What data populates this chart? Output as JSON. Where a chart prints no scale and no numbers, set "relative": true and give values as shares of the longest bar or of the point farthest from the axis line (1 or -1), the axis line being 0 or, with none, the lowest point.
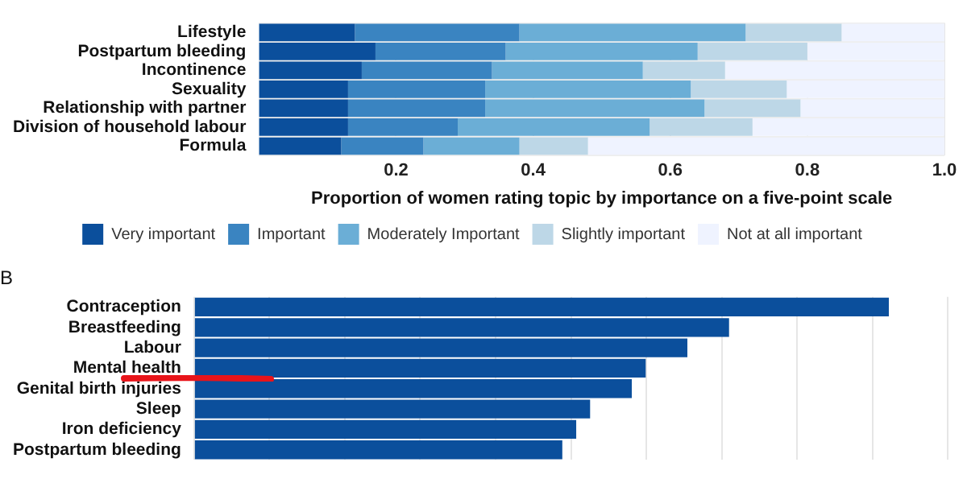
{
  "chart_data": [
    {
      "type": "bar",
      "orientation": "horizontal",
      "stacked": true,
      "xlabel": "Proportion of women rating topic by importance on a five-point scale",
      "categories": [
        "Lifestyle",
        "Postpartum bleeding",
        "Incontinence",
        "Sexuality",
        "Relationship with partner",
        "Division of household labour",
        "Formula"
      ],
      "xlim": [
        0,
        1
      ],
      "xticks": [
        {
          "value": 0.2,
          "label": "0.2"
        },
        {
          "value": 0.4,
          "label": "0.4"
        },
        {
          "value": 0.6,
          "label": "0.6"
        },
        {
          "value": 0.8,
          "label": "0.8"
        },
        {
          "value": 1,
          "label": "1.0"
        }
      ],
      "grid": true,
      "legend": "bottom",
      "series": [
        {
          "name": "Very important",
          "color": "#0b4f9c",
          "values": [
            0.14,
            0.17,
            0.15,
            0.13,
            0.13,
            0.13,
            0.12
          ]
        },
        {
          "name": "Important",
          "color": "#3a84c1",
          "values": [
            0.24,
            0.19,
            0.19,
            0.2,
            0.2,
            0.16,
            0.12
          ]
        },
        {
          "name": "Moderately Important",
          "color": "#6baed6",
          "values": [
            0.33,
            0.28,
            0.22,
            0.3,
            0.32,
            0.28,
            0.14
          ]
        },
        {
          "name": "Slightly important",
          "color": "#bdd7e7",
          "values": [
            0.14,
            0.16,
            0.12,
            0.14,
            0.14,
            0.15,
            0.1
          ]
        },
        {
          "name": "Not at all important",
          "color": "#eff3ff",
          "values": [
            0.15,
            0.2,
            0.32,
            0.23,
            0.21,
            0.28,
            0.52
          ]
        }
      ]
    },
    {
      "type": "bar",
      "orientation": "horizontal",
      "relative": true,
      "title": "B",
      "categories": [
        "Contraception",
        "Breastfeeding",
        "Labour",
        "Mental health",
        "Genital birth injuries",
        "Sleep",
        "Iron deficiency",
        "Postpartum bleeding"
      ],
      "grid": "x",
      "series": [
        {
          "color": "#0b4f9c",
          "values": [
            1,
            0.77,
            0.71,
            0.65,
            0.63,
            0.57,
            0.55,
            0.53
          ]
        }
      ]
    }
  ]
}
